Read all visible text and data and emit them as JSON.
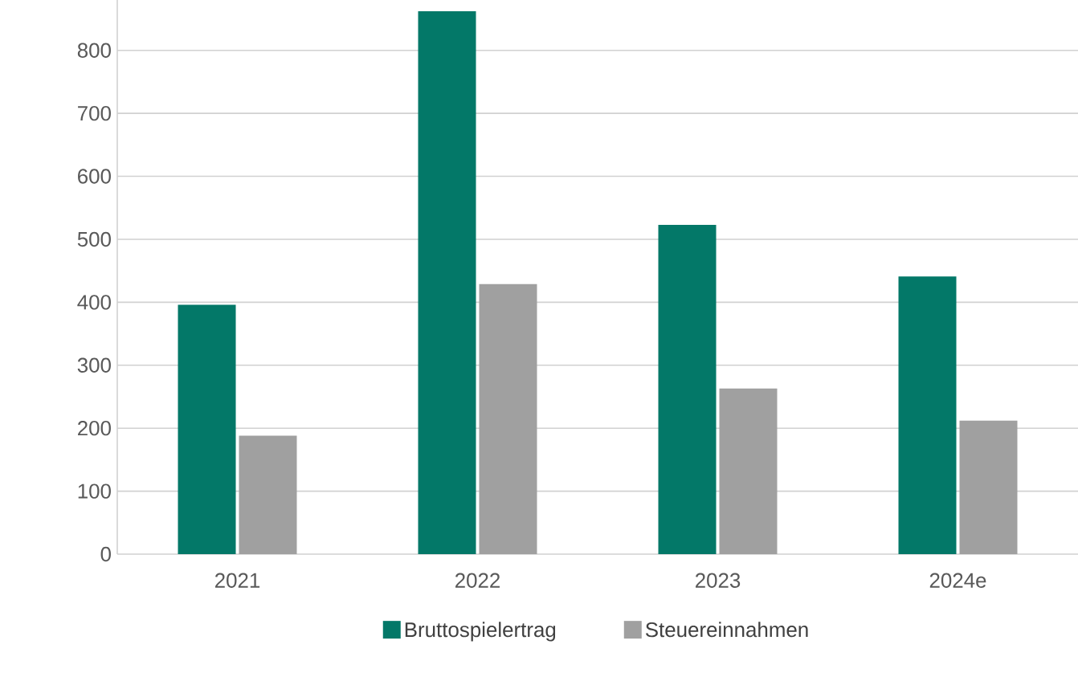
{
  "chart_data": {
    "type": "bar",
    "categories": [
      "2021",
      "2022",
      "2023",
      "2024e"
    ],
    "series": [
      {
        "name": "Bruttospielertrag",
        "color": "#037868",
        "values": [
          396,
          862,
          523,
          441
        ]
      },
      {
        "name": "Steuereinnahmen",
        "color": "#a0a0a0",
        "values": [
          188,
          429,
          263,
          212
        ]
      }
    ],
    "ylim": [
      0,
      880
    ],
    "yticks": [
      0,
      100,
      200,
      300,
      400,
      500,
      600,
      700,
      800
    ],
    "grid": "y",
    "legend": "bottom"
  }
}
